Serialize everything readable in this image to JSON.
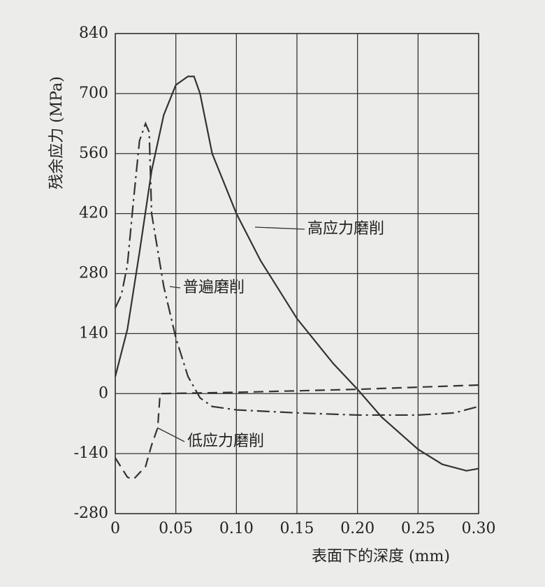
{
  "chart_data": {
    "type": "line",
    "x_label": "表面下的深度 (mm)",
    "y_label": "残余应力 (MPa)",
    "xlim": [
      0,
      0.3
    ],
    "xticks": [
      0,
      0.05,
      {
        "value": 0.1,
        "label": "0.10"
      },
      0.15,
      {
        "value": 0.2,
        "label": "0.20"
      },
      0.25,
      {
        "value": 0.3,
        "label": "0.30"
      }
    ],
    "ylim": [
      -280,
      840
    ],
    "yticks": [
      -280,
      -140,
      0,
      140,
      280,
      420,
      560,
      700,
      840
    ],
    "grid": true,
    "series": [
      {
        "name": "高应力磨削",
        "color": "#333333",
        "style": "solid",
        "x": [
          0,
          0.01,
          0.02,
          0.03,
          0.04,
          0.05,
          0.06,
          0.065,
          0.07,
          0.08,
          0.1,
          0.12,
          0.15,
          0.18,
          0.2,
          0.22,
          0.25,
          0.27,
          0.29,
          0.3
        ],
        "values": [
          40,
          150,
          330,
          520,
          650,
          720,
          740,
          740,
          700,
          560,
          420,
          310,
          175,
          70,
          10,
          -55,
          -130,
          -165,
          -180,
          -175
        ]
      },
      {
        "name": "普遍磨削",
        "color": "#333333",
        "style": "dashdot",
        "x": [
          0,
          0.005,
          0.01,
          0.015,
          0.02,
          0.025,
          0.028,
          0.03,
          0.04,
          0.05,
          0.06,
          0.07,
          0.08,
          0.1,
          0.15,
          0.2,
          0.25,
          0.28,
          0.3
        ],
        "values": [
          200,
          230,
          300,
          450,
          590,
          630,
          610,
          420,
          250,
          130,
          40,
          -10,
          -30,
          -38,
          -45,
          -50,
          -50,
          -45,
          -30
        ]
      },
      {
        "name": "低应力磨削",
        "color": "#333333",
        "style": "dashed",
        "x": [
          0,
          0.01,
          0.015,
          0.025,
          0.03,
          0.035,
          0.037,
          0.1,
          0.2,
          0.3
        ],
        "values": [
          -150,
          -195,
          -200,
          -170,
          -120,
          -80,
          0,
          3,
          10,
          20
        ]
      }
    ]
  }
}
